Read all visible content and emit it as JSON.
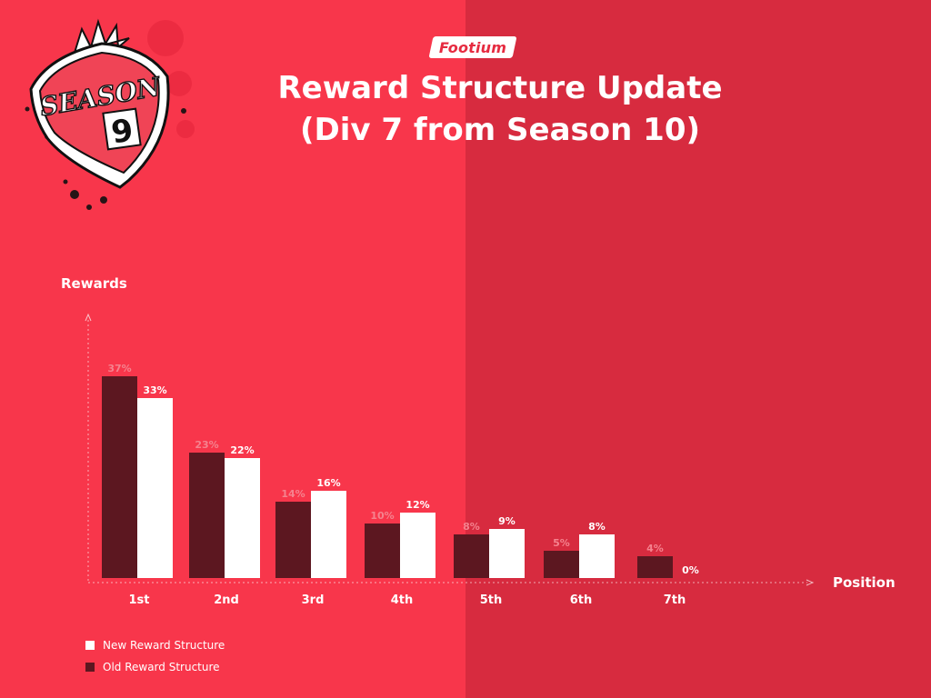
{
  "brand": {
    "logo_text": "Footium"
  },
  "badge": {
    "word": "SEASON",
    "number": "9"
  },
  "title": {
    "line1": "Reward Structure Update",
    "line2": "(Div 7 from Season 10)"
  },
  "colors": {
    "background_left": "#f8364b",
    "background_right": "#d72b3f",
    "old_bar": "#5c1720",
    "new_bar": "#ffffff",
    "old_label": "#f5828e"
  },
  "chart_data": {
    "type": "bar",
    "ylabel": "Rewards",
    "xlabel": "Position",
    "categories": [
      "1st",
      "2nd",
      "3rd",
      "4th",
      "5th",
      "6th",
      "7th"
    ],
    "series": [
      {
        "name": "Old Reward Structure",
        "values": [
          37,
          23,
          14,
          10,
          8,
          5,
          4
        ],
        "labels": [
          "37%",
          "23%",
          "14%",
          "10%",
          "8%",
          "5%",
          "4%"
        ]
      },
      {
        "name": "New Reward Structure",
        "values": [
          33,
          22,
          16,
          12,
          9,
          8,
          0
        ],
        "labels": [
          "33%",
          "22%",
          "16%",
          "12%",
          "9%",
          "8%",
          "0%"
        ]
      }
    ],
    "ylim": [
      0,
      40
    ],
    "grid": false,
    "legend": "bottom-left"
  },
  "legend": {
    "new_label": "New Reward Structure",
    "old_label": "Old Reward Structure"
  }
}
